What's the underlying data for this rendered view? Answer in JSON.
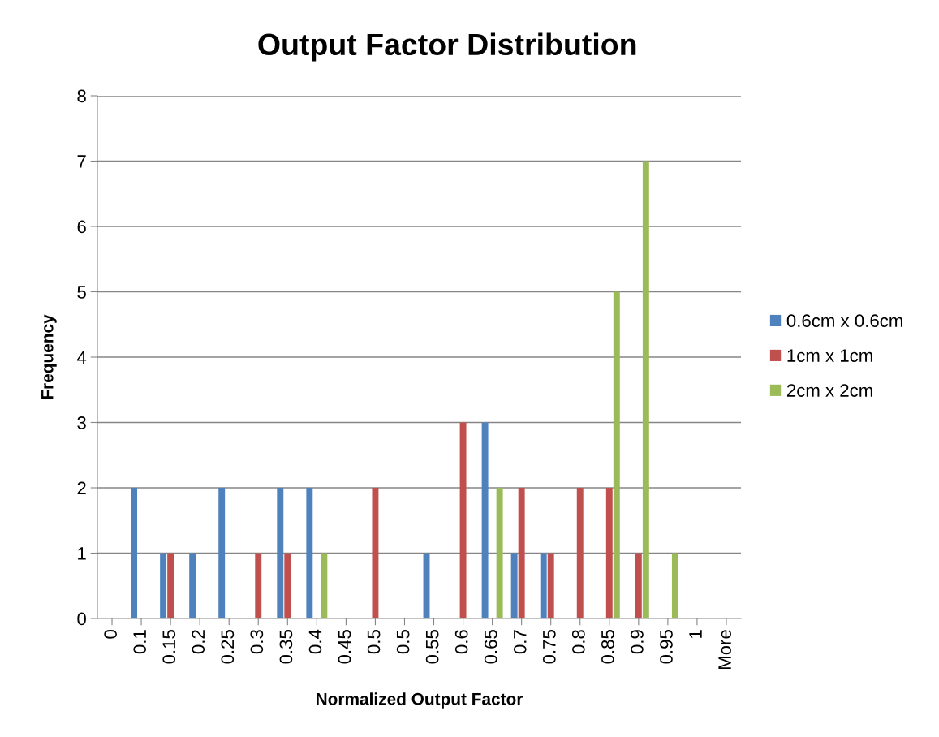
{
  "chart_data": {
    "type": "bar",
    "title": "Output Factor Distribution",
    "xlabel": "Normalized Output Factor",
    "ylabel": "Frequency",
    "categories": [
      "0",
      "0.1",
      "0.15",
      "0.2",
      "0.25",
      "0.3",
      "0.35",
      "0.4",
      "0.45",
      "0.5",
      "0.5",
      "0.55",
      "0.6",
      "0.65",
      "0.7",
      "0.75",
      "0.8",
      "0.85",
      "0.9",
      "0.95",
      "1",
      "More"
    ],
    "series": [
      {
        "name": "0.6cm x 0.6cm",
        "color": "#4f81bd",
        "values": [
          0,
          2,
          1,
          1,
          2,
          0,
          2,
          2,
          0,
          0,
          0,
          1,
          0,
          3,
          1,
          1,
          0,
          0,
          0,
          0,
          0,
          0
        ]
      },
      {
        "name": "1cm x 1cm",
        "color": "#c0504d",
        "values": [
          0,
          0,
          1,
          0,
          0,
          1,
          1,
          0,
          0,
          2,
          0,
          0,
          3,
          0,
          2,
          1,
          2,
          2,
          1,
          0,
          0,
          0
        ]
      },
      {
        "name": "2cm x 2cm",
        "color": "#9bbb59",
        "values": [
          0,
          0,
          0,
          0,
          0,
          0,
          0,
          1,
          0,
          0,
          0,
          0,
          0,
          2,
          0,
          0,
          0,
          5,
          7,
          1,
          0,
          0
        ]
      }
    ],
    "ylim": [
      0,
      8
    ],
    "yticks": [
      0,
      1,
      2,
      3,
      4,
      5,
      6,
      7,
      8
    ],
    "grid": "y",
    "legend": "right"
  }
}
